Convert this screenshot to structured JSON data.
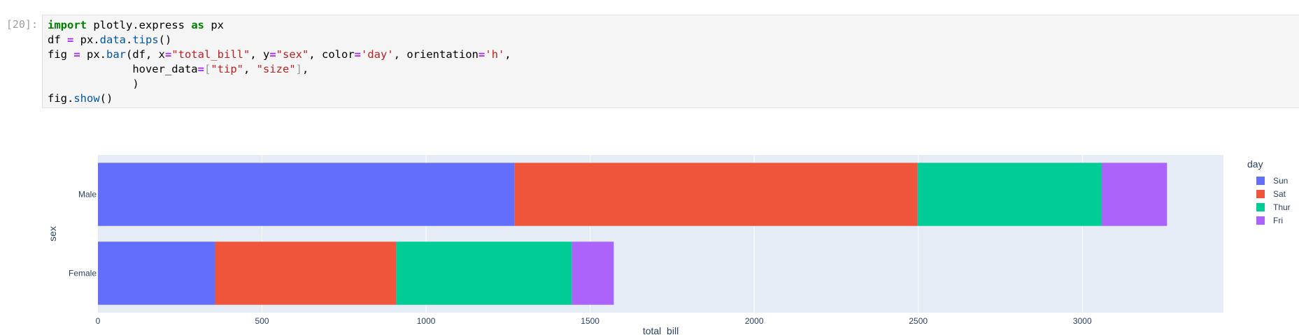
{
  "cell": {
    "prompt": "[20]:",
    "code_lines": [
      [
        [
          "kw",
          "import"
        ],
        [
          "txt",
          " plotly.express "
        ],
        [
          "kw",
          "as"
        ],
        [
          "txt",
          " px"
        ]
      ],
      [
        [
          "txt",
          "df "
        ],
        [
          "op",
          "="
        ],
        [
          "txt",
          " px."
        ],
        [
          "fn",
          "data"
        ],
        [
          "txt",
          "."
        ],
        [
          "fn",
          "tips"
        ],
        [
          "txt",
          "()"
        ]
      ],
      [
        [
          "txt",
          "fig "
        ],
        [
          "op",
          "="
        ],
        [
          "txt",
          " px."
        ],
        [
          "fn",
          "bar"
        ],
        [
          "txt",
          "(df, x"
        ],
        [
          "op",
          "="
        ],
        [
          "str",
          "\"total_bill\""
        ],
        [
          "txt",
          ", y"
        ],
        [
          "op",
          "="
        ],
        [
          "str",
          "\"sex\""
        ],
        [
          "txt",
          ", color"
        ],
        [
          "op",
          "="
        ],
        [
          "str",
          "'day'"
        ],
        [
          "txt",
          ", orientation"
        ],
        [
          "op",
          "="
        ],
        [
          "str",
          "'h'"
        ],
        [
          "txt",
          ","
        ]
      ],
      [
        [
          "txt",
          "             hover_data"
        ],
        [
          "op",
          "="
        ],
        [
          "br",
          "["
        ],
        [
          "str",
          "\"tip\""
        ],
        [
          "txt",
          ", "
        ],
        [
          "str",
          "\"size\""
        ],
        [
          "br",
          "]"
        ],
        [
          "txt",
          ","
        ]
      ],
      [
        [
          "txt",
          "             )"
        ]
      ],
      [
        [
          "txt",
          "fig."
        ],
        [
          "fn",
          "show"
        ],
        [
          "txt",
          "()"
        ]
      ]
    ]
  },
  "chart_data": {
    "type": "bar",
    "orientation": "h",
    "barmode": "stack",
    "xlabel": "total_bill",
    "ylabel": "sex",
    "xlim": [
      0,
      3430
    ],
    "x_ticks": [
      0,
      500,
      1000,
      1500,
      2000,
      2500,
      3000
    ],
    "categories": [
      "Male",
      "Female"
    ],
    "legend": {
      "title": "day",
      "placement": "right"
    },
    "series": [
      {
        "name": "Sun",
        "color": "#636efa",
        "values": [
          1270,
          357
        ]
      },
      {
        "name": "Sat",
        "color": "#ef553b",
        "values": [
          1228,
          552
        ]
      },
      {
        "name": "Thur",
        "color": "#00cc96",
        "values": [
          561,
          535
        ]
      },
      {
        "name": "Fri",
        "color": "#ab63fa",
        "values": [
          199,
          128
        ]
      }
    ]
  }
}
